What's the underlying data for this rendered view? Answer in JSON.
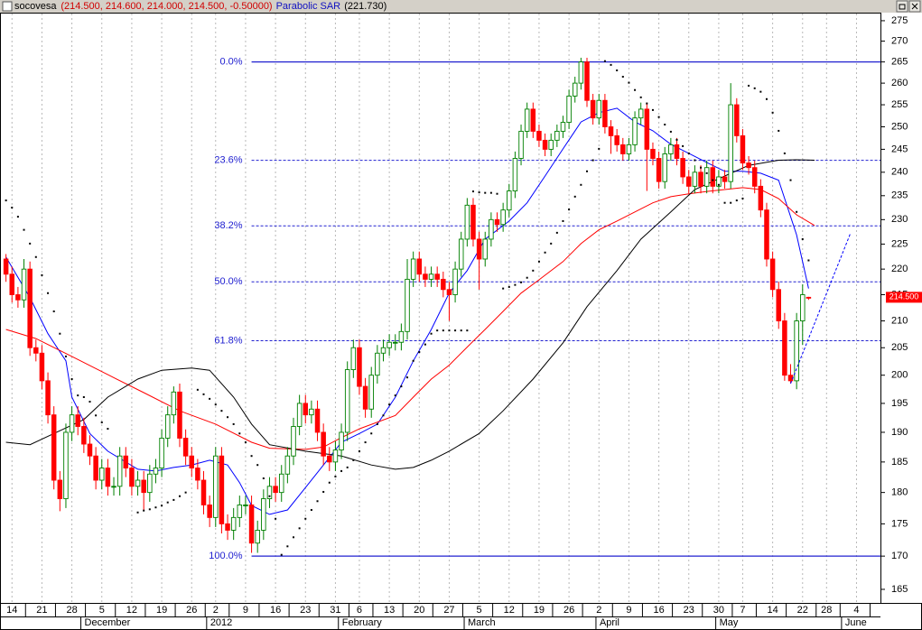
{
  "chart_data": {
    "type": "candlestick",
    "title": "socovesa",
    "ohlc_label": "(214.500, 214.600, 214.000, 214.500, -0.50000)",
    "indicator": "Parabolic SAR",
    "indicator_label": "(221.730)",
    "log_y": true,
    "grid": true,
    "up_color": "#008000",
    "down_color": "#ff0000",
    "xlim": [
      -1,
      146
    ],
    "ylim": [
      163,
      277
    ],
    "yticks": [
      165,
      170,
      175,
      180,
      185,
      190,
      195,
      200,
      205,
      210,
      215,
      220,
      225,
      230,
      235,
      240,
      245,
      250,
      255,
      260,
      265,
      270,
      275
    ],
    "xticks": [
      {
        "value": 1,
        "label": "14"
      },
      {
        "value": 6,
        "label": "21"
      },
      {
        "value": 11,
        "label": "28"
      },
      {
        "value": 16,
        "label": "5"
      },
      {
        "value": 21,
        "label": "12"
      },
      {
        "value": 26,
        "label": "19"
      },
      {
        "value": 31,
        "label": "26"
      },
      {
        "value": 35,
        "label": "2"
      },
      {
        "value": 40,
        "label": "9"
      },
      {
        "value": 45,
        "label": "16"
      },
      {
        "value": 50,
        "label": "23"
      },
      {
        "value": 55,
        "label": "31"
      },
      {
        "value": 59,
        "label": "6"
      },
      {
        "value": 64,
        "label": "13"
      },
      {
        "value": 69,
        "label": "20"
      },
      {
        "value": 74,
        "label": "27"
      },
      {
        "value": 79,
        "label": "5"
      },
      {
        "value": 84,
        "label": "12"
      },
      {
        "value": 89,
        "label": "19"
      },
      {
        "value": 94,
        "label": "26"
      },
      {
        "value": 99,
        "label": "2"
      },
      {
        "value": 104,
        "label": "9"
      },
      {
        "value": 109,
        "label": "16"
      },
      {
        "value": 114,
        "label": "23"
      },
      {
        "value": 119,
        "label": "30"
      },
      {
        "value": 123,
        "label": "7"
      },
      {
        "value": 128,
        "label": "14"
      },
      {
        "value": 133,
        "label": "22"
      },
      {
        "value": 137,
        "label": "28"
      },
      {
        "value": 142,
        "label": "4"
      }
    ],
    "month_ticks": [
      {
        "value": 12.5,
        "label": "December"
      },
      {
        "value": 33.5,
        "label": "2012"
      },
      {
        "value": 55.5,
        "label": "February"
      },
      {
        "value": 76.5,
        "label": "March"
      },
      {
        "value": 98.5,
        "label": "April"
      },
      {
        "value": 118.5,
        "label": "May"
      },
      {
        "value": 139.5,
        "label": "June"
      }
    ],
    "candles": [
      [
        222,
        223,
        217.5,
        219
      ],
      [
        219,
        220.5,
        213.5,
        215
      ],
      [
        215,
        216.5,
        212.5,
        214
      ],
      [
        214,
        222,
        212.5,
        220
      ],
      [
        220,
        221.5,
        203.5,
        205
      ],
      [
        205,
        206.5,
        202.5,
        204
      ],
      [
        204,
        205.5,
        197.5,
        199
      ],
      [
        199,
        200.5,
        191.5,
        193
      ],
      [
        193,
        194.5,
        180.5,
        182
      ],
      [
        182,
        183.5,
        177,
        179
      ],
      [
        179,
        191.5,
        177.5,
        190
      ],
      [
        190,
        194.5,
        188.5,
        193
      ],
      [
        193,
        194.5,
        189.5,
        191
      ],
      [
        191,
        192.5,
        186.5,
        188
      ],
      [
        188,
        189.5,
        184.5,
        186
      ],
      [
        186,
        187.5,
        180.5,
        182
      ],
      [
        182,
        185.5,
        180.5,
        184
      ],
      [
        184,
        185.5,
        179.5,
        181
      ],
      [
        181,
        182.5,
        179.5,
        181
      ],
      [
        181,
        187.5,
        179.5,
        186
      ],
      [
        186,
        187.5,
        182.5,
        184
      ],
      [
        184,
        185.5,
        179.5,
        181
      ],
      [
        181,
        183.5,
        179.5,
        182
      ],
      [
        182,
        183.5,
        177,
        180
      ],
      [
        180,
        184.5,
        178.5,
        183
      ],
      [
        183,
        185.5,
        181.5,
        184
      ],
      [
        184,
        190.5,
        182.5,
        189
      ],
      [
        189,
        194.5,
        187.5,
        193
      ],
      [
        193,
        198,
        191.5,
        197
      ],
      [
        197,
        198.5,
        187.5,
        189
      ],
      [
        189,
        190.5,
        184.5,
        186
      ],
      [
        186,
        187.5,
        182.5,
        184
      ],
      [
        184,
        185.5,
        180.5,
        182
      ],
      [
        182,
        183.5,
        176.5,
        178
      ],
      [
        178,
        179.5,
        174.5,
        176
      ],
      [
        176,
        187.5,
        174.5,
        186
      ],
      [
        186,
        187.5,
        173.5,
        175
      ],
      [
        175,
        176.5,
        172.5,
        174
      ],
      [
        174,
        177.5,
        172.5,
        176
      ],
      [
        176,
        179.5,
        174.5,
        178
      ],
      [
        178,
        179.5,
        176.5,
        178
      ],
      [
        178,
        179.5,
        170.5,
        172
      ],
      [
        172,
        175.5,
        170.5,
        174
      ],
      [
        174,
        180.5,
        172.5,
        179
      ],
      [
        179,
        182.5,
        177.5,
        181
      ],
      [
        181,
        182.5,
        178.5,
        180
      ],
      [
        180,
        184.5,
        178.5,
        183
      ],
      [
        183,
        187.5,
        181.5,
        186
      ],
      [
        186,
        192.5,
        184.5,
        191
      ],
      [
        191,
        196.5,
        189.5,
        195
      ],
      [
        195,
        196.5,
        191.5,
        193
      ],
      [
        193,
        195.5,
        191.5,
        194
      ],
      [
        194,
        195.5,
        188.5,
        190
      ],
      [
        190,
        191.5,
        184.5,
        186
      ],
      [
        186,
        187.5,
        183.5,
        185
      ],
      [
        185,
        188.5,
        183.5,
        187
      ],
      [
        187,
        191.5,
        185.5,
        190
      ],
      [
        190,
        202.5,
        188.5,
        201
      ],
      [
        201,
        206.5,
        199.5,
        205
      ],
      [
        205,
        206.5,
        196.5,
        198
      ],
      [
        198,
        199.5,
        192.5,
        194
      ],
      [
        194,
        201.5,
        192.5,
        200
      ],
      [
        200,
        205.5,
        198.5,
        204
      ],
      [
        204,
        206.5,
        202.5,
        205
      ],
      [
        205,
        207.5,
        203.5,
        206
      ],
      [
        206,
        207.5,
        204.5,
        206
      ],
      [
        206,
        209.5,
        204.5,
        208
      ],
      [
        208,
        222,
        206.5,
        218
      ],
      [
        218,
        223.5,
        216.5,
        222
      ],
      [
        222,
        223.5,
        217.5,
        219
      ],
      [
        219,
        220.5,
        216.5,
        218
      ],
      [
        218,
        220.5,
        216.5,
        219
      ],
      [
        219,
        220.5,
        216.5,
        218
      ],
      [
        218,
        219.5,
        214.5,
        216
      ],
      [
        216,
        217.5,
        210,
        215
      ],
      [
        215,
        221.5,
        213.5,
        220
      ],
      [
        220,
        227.5,
        218.5,
        226
      ],
      [
        226,
        234.5,
        224.5,
        233
      ],
      [
        233,
        234.5,
        224.5,
        226
      ],
      [
        226,
        227.5,
        216,
        222
      ],
      [
        222,
        227.5,
        220.5,
        226
      ],
      [
        226,
        231.5,
        224.5,
        230
      ],
      [
        230,
        231.5,
        227.5,
        229
      ],
      [
        229,
        233.5,
        227.5,
        232
      ],
      [
        232,
        237.5,
        230.5,
        236
      ],
      [
        236,
        244.5,
        234.5,
        243
      ],
      [
        243,
        250.5,
        241.5,
        249
      ],
      [
        249,
        255.5,
        247.5,
        254
      ],
      [
        254,
        255.5,
        247.5,
        249
      ],
      [
        249,
        250.5,
        245.5,
        247
      ],
      [
        247,
        248.5,
        243.5,
        245
      ],
      [
        245,
        248.5,
        243.5,
        247
      ],
      [
        247,
        250.5,
        245.5,
        249
      ],
      [
        249,
        252.5,
        247.5,
        251
      ],
      [
        251,
        258.5,
        249.5,
        257
      ],
      [
        257,
        261.5,
        255.5,
        260
      ],
      [
        260,
        266,
        258.5,
        265
      ],
      [
        265,
        266,
        254.5,
        256
      ],
      [
        256,
        257.5,
        250.5,
        252
      ],
      [
        252,
        257.5,
        250.5,
        256
      ],
      [
        256,
        257.5,
        248.5,
        250
      ],
      [
        250,
        251.5,
        244,
        248
      ],
      [
        248,
        249.5,
        244.5,
        246
      ],
      [
        246,
        247.5,
        242.5,
        244
      ],
      [
        244,
        247.5,
        242.5,
        246
      ],
      [
        246,
        253.5,
        244.5,
        252
      ],
      [
        252,
        255.5,
        250.5,
        254
      ],
      [
        254,
        255.5,
        236,
        245
      ],
      [
        245,
        246.5,
        241.5,
        243
      ],
      [
        243,
        244.5,
        236.5,
        238
      ],
      [
        238,
        245.5,
        236.5,
        244
      ],
      [
        244,
        247.5,
        242.5,
        246
      ],
      [
        246,
        247.5,
        241.5,
        243
      ],
      [
        243,
        244.5,
        237.5,
        239
      ],
      [
        239,
        240.5,
        235.5,
        237
      ],
      [
        237,
        241.5,
        235.5,
        240
      ],
      [
        240,
        241.5,
        235.5,
        237
      ],
      [
        237,
        242.5,
        235.5,
        241
      ],
      [
        241,
        242.5,
        235.5,
        237
      ],
      [
        237,
        240.5,
        235.5,
        239
      ],
      [
        239,
        240.5,
        236.5,
        238
      ],
      [
        238,
        260,
        236.5,
        255
      ],
      [
        255,
        256.5,
        246.5,
        248
      ],
      [
        248,
        249.5,
        240.5,
        242
      ],
      [
        242,
        243.5,
        239.5,
        241
      ],
      [
        241,
        242.5,
        235.5,
        237
      ],
      [
        237,
        238.5,
        230.5,
        232
      ],
      [
        232,
        233.5,
        220.5,
        222
      ],
      [
        222,
        223.5,
        214.5,
        216
      ],
      [
        216,
        217.5,
        208.5,
        210
      ],
      [
        210,
        211.5,
        199,
        200
      ],
      [
        200,
        202,
        198.5,
        199
      ],
      [
        199,
        211.5,
        197.5,
        210
      ],
      [
        210,
        217,
        205.5,
        215
      ],
      [
        214.5,
        214.6,
        214,
        214.5
      ]
    ],
    "sar": {
      "color": "#000000",
      "values": [
        234.0,
        232.5,
        230.6,
        227.9,
        225.1,
        222.4,
        218.8,
        215.3,
        211.8,
        207.6,
        203.4,
        199.3,
        196.4,
        196.1,
        195.3,
        192.9,
        191.7,
        190.6,
        null,
        null,
        null,
        null,
        176.8,
        177.1,
        177.3,
        177.6,
        177.9,
        178.4,
        178.8,
        179.4,
        180.0,
        null,
        197.4,
        196.6,
        195.8,
        194.8,
        193.7,
        192.6,
        191.4,
        189.8,
        188.3,
        186.0,
        184.5,
        182.3,
        179.4,
        175.8,
        170.2,
        171.5,
        172.9,
        174.3,
        175.8,
        177.2,
        178.6,
        180.1,
        181.6,
        182.6,
        183.5,
        184.1,
        185.3,
        186.8,
        188.3,
        189.8,
        191.4,
        192.9,
        194.8,
        196.4,
        198.0,
        199.6,
        202.6,
        204.2,
        205.6,
        207.6,
        208.2,
        208.2,
        208.2,
        208.2,
        208.2,
        208.2,
        235.9,
        235.7,
        235.6,
        235.6,
        235.4,
        216.2,
        216.5,
        216.9,
        217.4,
        218.3,
        219.7,
        221.5,
        223.3,
        225.1,
        227.3,
        229.7,
        232.1,
        234.8,
        237.3,
        240.2,
        242.6,
        245.1,
        265.2,
        264.3,
        263.0,
        261.5,
        260.1,
        258.4,
        256.7,
        255.3,
        253.8,
        252.2,
        250.5,
        248.9,
        247.1,
        245.7,
        244.1,
        242.6,
        241.0,
        239.8,
        238.3,
        237.3,
        233.5,
        233.5,
        234.0,
        234.4,
        259.4,
        258.8,
        258.0,
        256.3,
        253.2,
        249.1,
        244.1,
        238.3,
        231.6,
        226.0,
        221.73
      ]
    },
    "lines": [
      {
        "color": "#0000ff",
        "x": [
          0,
          4,
          7,
          10,
          11,
          14,
          17,
          22,
          25,
          28,
          31,
          34,
          37,
          39,
          41,
          44,
          47,
          50,
          53,
          56,
          59,
          62,
          65,
          68,
          71,
          74,
          77,
          80,
          84,
          87,
          90,
          93,
          96,
          99,
          102,
          105,
          108,
          111,
          114,
          117,
          120,
          123,
          126,
          129,
          132,
          134
        ],
        "values": [
          222.4,
          214.4,
          207.6,
          202.6,
          196.1,
          189.8,
          186.8,
          183.8,
          183.5,
          184.1,
          184.5,
          185.3,
          184.5,
          181.6,
          177.9,
          176.5,
          177.2,
          180.8,
          184.5,
          188.3,
          189.8,
          191.4,
          196.1,
          202.6,
          208.4,
          215.3,
          219.7,
          226.0,
          229.7,
          233.5,
          239.2,
          245.1,
          251.1,
          253.2,
          254.2,
          251.1,
          249.1,
          246.1,
          244.1,
          242.1,
          240.2,
          240.2,
          239.8,
          238.3,
          226.9,
          216.2
        ]
      },
      {
        "color": "#ff0000",
        "x": [
          0,
          5,
          11,
          17,
          23,
          29,
          35,
          41,
          44,
          50,
          53,
          56,
          59,
          65,
          68,
          71,
          74,
          77,
          80,
          83,
          86,
          89,
          93,
          96,
          99,
          102,
          105,
          108,
          111,
          114,
          117,
          120,
          123,
          126,
          129,
          132,
          135
        ],
        "values": [
          208.4,
          206.7,
          203.4,
          200.1,
          196.9,
          193.7,
          191.4,
          188.3,
          187.3,
          187.1,
          187.5,
          189.1,
          190.6,
          192.9,
          196.1,
          199.3,
          201.8,
          205.1,
          208.4,
          211.8,
          215.3,
          217.9,
          221.5,
          225.1,
          227.9,
          229.7,
          231.6,
          233.5,
          234.8,
          235.4,
          235.9,
          236.3,
          236.7,
          236.3,
          234.4,
          231.0,
          228.8
        ]
      },
      {
        "color": "#000000",
        "x": [
          0,
          4,
          8,
          13,
          17,
          22,
          26,
          31,
          34,
          38,
          41,
          44,
          50,
          56,
          61,
          65,
          68,
          71,
          74,
          79,
          83,
          88,
          93,
          97,
          102,
          106,
          111,
          115,
          120,
          124,
          129,
          132,
          135
        ],
        "values": [
          188.3,
          187.9,
          189.8,
          192.2,
          196.1,
          199.3,
          200.9,
          201.3,
          200.9,
          196.1,
          191.4,
          187.9,
          186.8,
          186.0,
          184.5,
          183.8,
          184.1,
          185.3,
          186.8,
          189.8,
          193.7,
          199.3,
          205.9,
          212.7,
          219.7,
          226.0,
          231.6,
          236.3,
          239.2,
          241.5,
          242.6,
          242.7,
          242.6
        ]
      }
    ],
    "trendline": {
      "color": "#0000ff",
      "x": [
        131,
        141
      ],
      "values": [
        198.5,
        227.2
      ]
    },
    "fib": {
      "color": "#2020d0",
      "x_start": 41,
      "levels": [
        {
          "value": 265,
          "label": "0.0%"
        },
        {
          "value": 242.58,
          "label": "23.6%"
        },
        {
          "value": 228.71,
          "label": "38.2%"
        },
        {
          "value": 217.5,
          "label": "50.0%"
        },
        {
          "value": 206.29,
          "label": "61.8%"
        },
        {
          "value": 170,
          "label": "100.0%"
        }
      ]
    },
    "last_label": {
      "value": 214.5,
      "label": "214.500",
      "color": "#ff0000"
    }
  }
}
